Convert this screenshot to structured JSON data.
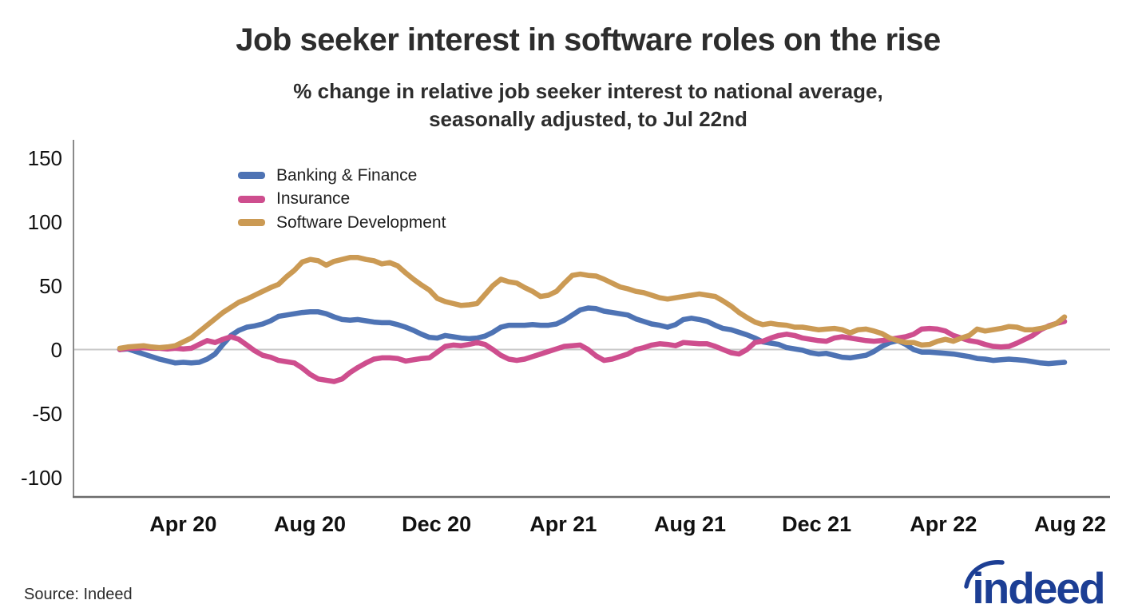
{
  "header": {
    "title": "Job seeker interest in software roles on the rise",
    "subtitle_line1": "% change in relative job seeker interest to national average,",
    "subtitle_line2": "seasonally adjusted, to Jul 22nd"
  },
  "footer": {
    "source": "Source: Indeed",
    "logo_text": "indeed",
    "logo_color": "#1c3e94"
  },
  "chart_data": {
    "type": "line",
    "title": "Job seeker interest in software roles on the rise",
    "ylabel": "% change in relative job seeker interest to national average",
    "x_start": "Feb 2020",
    "x_end": "Jul 22, 2022",
    "months_total": 30,
    "grid": "zero-line-only",
    "legend_position": "inside-top-left",
    "ylim": [
      -115,
      162
    ],
    "y_ticks": [
      {
        "label": "150",
        "value": 150
      },
      {
        "label": "100",
        "value": 100
      },
      {
        "label": "50",
        "value": 50
      },
      {
        "label": "0",
        "value": 0
      },
      {
        "label": "-50",
        "value": -50
      },
      {
        "label": "-100",
        "value": -100
      }
    ],
    "x_ticks": [
      {
        "label": "Apr 20",
        "month": 2
      },
      {
        "label": "Aug 20",
        "month": 6
      },
      {
        "label": "Dec 20",
        "month": 10
      },
      {
        "label": "Apr 21",
        "month": 14
      },
      {
        "label": "Aug 21",
        "month": 18
      },
      {
        "label": "Dec 21",
        "month": 22
      },
      {
        "label": "Apr 22",
        "month": 26
      },
      {
        "label": "Aug 22",
        "month": 30
      }
    ],
    "series": [
      {
        "name": "Banking & Finance",
        "color": "#4e73b4",
        "values": [
          0,
          0.5,
          -1.5,
          -3.5,
          -5.5,
          -7.5,
          -9,
          -10.5,
          -10,
          -10.5,
          -10,
          -7.5,
          -3.5,
          4,
          11,
          15,
          17.5,
          18.5,
          20,
          22.5,
          26,
          27,
          28,
          29,
          29.5,
          29.5,
          28,
          25.5,
          23.5,
          23,
          23.5,
          22.5,
          21.5,
          21,
          21,
          19.5,
          17.5,
          15,
          12,
          9.5,
          9,
          11,
          10,
          9,
          8.5,
          9,
          10.5,
          13.5,
          17.5,
          19,
          19,
          19,
          19.5,
          19,
          19,
          20,
          23,
          27,
          31,
          32.5,
          32,
          30,
          29,
          28,
          27,
          24,
          22,
          20,
          19,
          17.5,
          19.5,
          23.5,
          24.5,
          23.5,
          22,
          19,
          16.5,
          15.5,
          13.5,
          11.5,
          9,
          6,
          5,
          4,
          1.5,
          0.5,
          -0.5,
          -2.5,
          -3.5,
          -3,
          -4.5,
          -6,
          -6.5,
          -5.5,
          -4.5,
          -1.5,
          2.5,
          5.5,
          7,
          4,
          0,
          -2,
          -2,
          -2.5,
          -3,
          -3.5,
          -4.5,
          -5.5,
          -7,
          -7.5,
          -8.5,
          -8,
          -7.5,
          -8,
          -8.5,
          -9.5,
          -10.5,
          -11,
          -10.5,
          -10
        ]
      },
      {
        "name": "Insurance",
        "color": "#ce4e8e",
        "values": [
          0,
          1,
          1,
          1.5,
          1,
          1,
          0.5,
          1,
          0.5,
          1,
          4,
          7,
          5.5,
          8,
          10,
          8,
          3.5,
          -1,
          -4.5,
          -6,
          -8.5,
          -9.5,
          -10.5,
          -14.5,
          -19.5,
          -23,
          -24,
          -25,
          -23,
          -18,
          -14,
          -10.5,
          -7.5,
          -6.5,
          -6.5,
          -7,
          -9,
          -8,
          -7,
          -6.5,
          -2,
          2.5,
          3.5,
          3,
          4,
          5.5,
          4,
          0,
          -4.5,
          -7.5,
          -8.5,
          -7.5,
          -5.5,
          -3.5,
          -1.5,
          0.5,
          2.5,
          3,
          3.5,
          0,
          -5,
          -8.5,
          -7.5,
          -5.5,
          -3.5,
          0,
          1.5,
          3.5,
          4.5,
          4,
          3,
          5.5,
          5,
          4.5,
          4.5,
          2.5,
          0,
          -2.5,
          -3.5,
          0,
          5.5,
          6.5,
          9,
          11,
          12,
          11,
          9,
          8,
          7,
          6.5,
          9,
          10,
          9,
          8,
          7,
          6.5,
          7,
          8,
          9,
          10,
          12,
          16,
          16.5,
          16,
          14.5,
          11,
          9,
          7,
          6,
          4,
          2.5,
          2,
          2.5,
          5,
          8,
          11,
          15.5,
          18.5,
          20.5,
          22
        ]
      },
      {
        "name": "Software Development",
        "color": "#cb9a54",
        "values": [
          1,
          2,
          2.5,
          3,
          2,
          1.5,
          2,
          3,
          6,
          9,
          14,
          19,
          24,
          29,
          33,
          37,
          39.5,
          42.5,
          45.5,
          48.5,
          51,
          57,
          62,
          68.5,
          70.5,
          69.5,
          66,
          69,
          70.5,
          72,
          72,
          70.5,
          69.5,
          67,
          68,
          65.5,
          60,
          55,
          50.5,
          46.5,
          40,
          37.5,
          36,
          34.5,
          35,
          36,
          43,
          50,
          55,
          53,
          52,
          48.5,
          45.5,
          41.5,
          42.5,
          45.5,
          52,
          58,
          59,
          58,
          57.5,
          55,
          52,
          49,
          47.5,
          45.5,
          44.5,
          42.5,
          40.5,
          39.5,
          40.5,
          41.5,
          42.5,
          43.5,
          42.5,
          41.5,
          38,
          34,
          29,
          25,
          21.5,
          19.5,
          20.5,
          19.5,
          19,
          17.5,
          17.5,
          16.5,
          15.5,
          16,
          16.5,
          15.5,
          13,
          15.5,
          16,
          14.5,
          12.5,
          9,
          7,
          5.5,
          5.5,
          3.5,
          4,
          6.5,
          8,
          6.5,
          9,
          11,
          16,
          14.5,
          15.5,
          16.5,
          18,
          17.5,
          15.5,
          15.5,
          16.5,
          18,
          20.5,
          25.5
        ]
      }
    ]
  }
}
